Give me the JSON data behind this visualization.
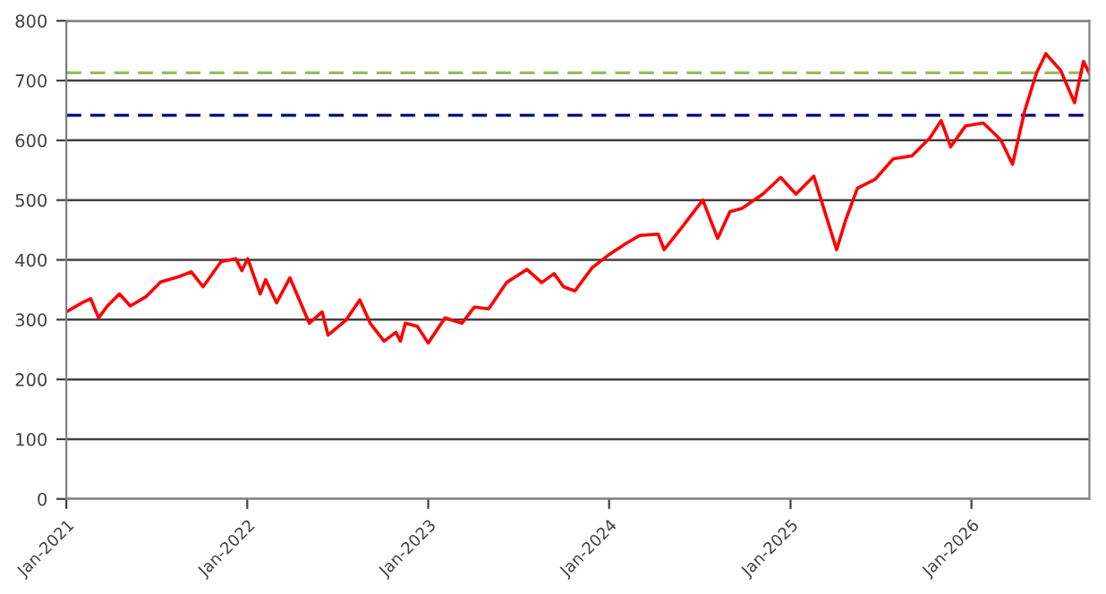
{
  "chart_data": {
    "type": "line",
    "xlim": [
      "2021-01-01",
      "2026-08-27"
    ],
    "ylim": [
      0,
      800
    ],
    "yticks": [
      0,
      100,
      200,
      300,
      400,
      500,
      600,
      700,
      800
    ],
    "xticks": [
      {
        "value": "2021-01-01",
        "label": "Jan-2021"
      },
      {
        "value": "2022-01-01",
        "label": "Jan-2022"
      },
      {
        "value": "2023-01-01",
        "label": "Jan-2023"
      },
      {
        "value": "2024-01-01",
        "label": "Jan-2024"
      },
      {
        "value": "2025-01-01",
        "label": "Jan-2025"
      },
      {
        "value": "2026-01-01",
        "label": "Jan-2026"
      }
    ],
    "grid": "y",
    "legend": false,
    "marker": "none",
    "line_style": "solid",
    "ref_lines": [
      {
        "axis": "y",
        "value": 713,
        "color": "#9bbb59",
        "line_style": "dashed"
      },
      {
        "axis": "y",
        "value": 642,
        "color": "#000080",
        "line_style": "dashed"
      }
    ],
    "series": [
      {
        "color": "#ff0000",
        "x": [
          "2021-01-01",
          "2021-02-01",
          "2021-02-19",
          "2021-03-07",
          "2021-03-25",
          "2021-04-18",
          "2021-05-10",
          "2021-06-10",
          "2021-07-10",
          "2021-08-16",
          "2021-09-10",
          "2021-10-04",
          "2021-11-09",
          "2021-12-09",
          "2021-12-21",
          "2022-01-02",
          "2022-01-27",
          "2022-02-07",
          "2022-03-01",
          "2022-03-28",
          "2022-05-06",
          "2022-06-01",
          "2022-06-13",
          "2022-07-19",
          "2022-08-16",
          "2022-09-06",
          "2022-10-04",
          "2022-10-28",
          "2022-11-06",
          "2022-11-16",
          "2022-12-10",
          "2023-01-01",
          "2023-02-04",
          "2023-03-10",
          "2023-04-04",
          "2023-05-03",
          "2023-06-08",
          "2023-07-19",
          "2023-08-18",
          "2023-09-12",
          "2023-10-01",
          "2023-10-24",
          "2023-11-28",
          "2023-12-29",
          "2024-02-03",
          "2024-03-03",
          "2024-04-09",
          "2024-04-21",
          "2024-06-02",
          "2024-07-08",
          "2024-08-07",
          "2024-09-01",
          "2024-09-25",
          "2024-11-06",
          "2024-12-12",
          "2025-01-12",
          "2025-02-17",
          "2025-03-11",
          "2025-04-04",
          "2025-04-22",
          "2025-05-16",
          "2025-06-21",
          "2025-07-27",
          "2025-09-03",
          "2025-10-09",
          "2025-11-01",
          "2025-11-20",
          "2025-12-20",
          "2026-01-25",
          "2026-03-01",
          "2026-03-25",
          "2026-04-18",
          "2026-05-12",
          "2026-05-31",
          "2026-06-30",
          "2026-07-28",
          "2026-08-15",
          "2026-08-27"
        ],
        "values": [
          313,
          328,
          335,
          303,
          323,
          343,
          323,
          338,
          363,
          372,
          380,
          355,
          397,
          402,
          382,
          402,
          343,
          367,
          328,
          370,
          294,
          313,
          274,
          299,
          333,
          294,
          264,
          279,
          264,
          294,
          289,
          261,
          303,
          294,
          321,
          318,
          362,
          384,
          362,
          377,
          355,
          348,
          387,
          407,
          427,
          441,
          443,
          417,
          461,
          500,
          436,
          481,
          486,
          510,
          538,
          510,
          540,
          481,
          417,
          466,
          520,
          535,
          569,
          574,
          604,
          633,
          589,
          624,
          629,
          601,
          560,
          648,
          712,
          745,
          717,
          663,
          732,
          712
        ]
      }
    ]
  }
}
